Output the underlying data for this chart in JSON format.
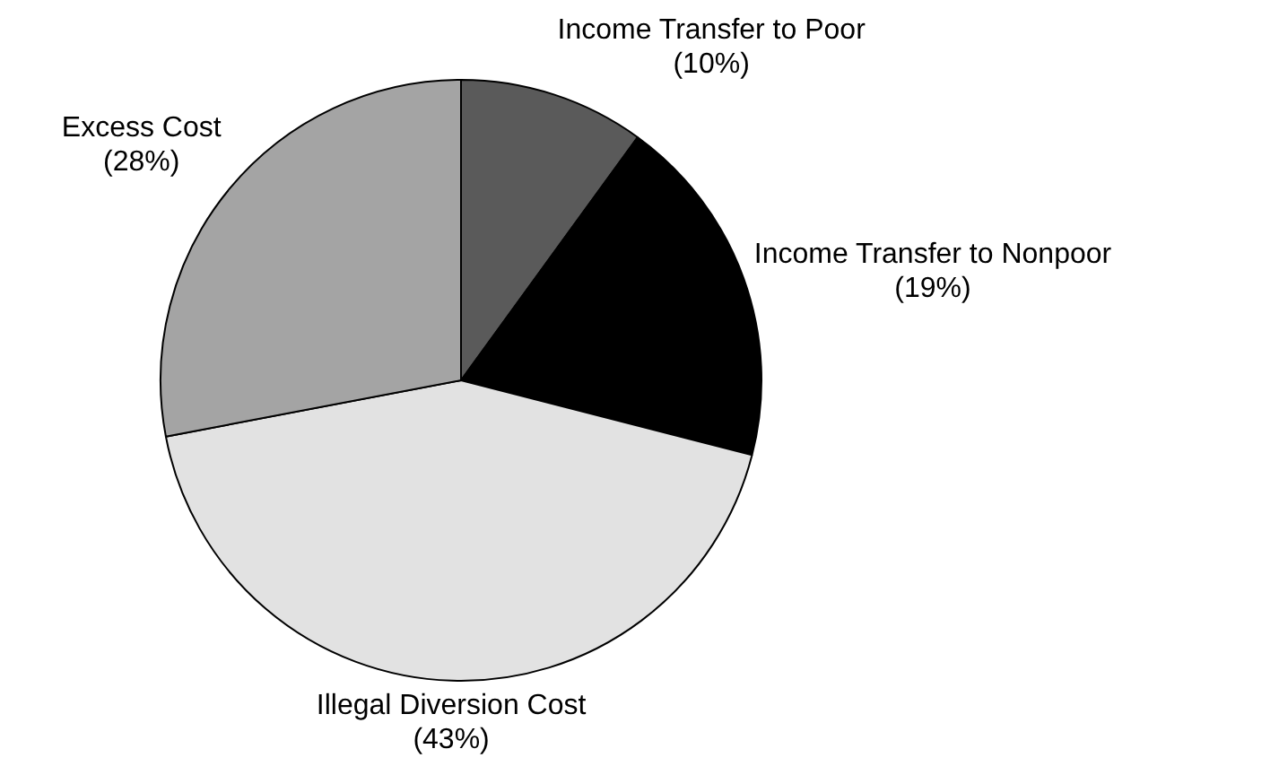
{
  "chart_data": {
    "type": "pie",
    "categories": [
      "Income Transfer to Poor",
      "Income Transfer to Nonpoor",
      "Illegal Diversion Cost",
      "Excess Cost"
    ],
    "values": [
      10,
      19,
      43,
      28
    ],
    "colors": [
      "#5a5a5a",
      "#000000",
      "#e2e2e2",
      "#a4a4a4"
    ],
    "value_labels": [
      "(10%)",
      "(19%)",
      "(43%)",
      "(28%)"
    ],
    "legend": false
  }
}
